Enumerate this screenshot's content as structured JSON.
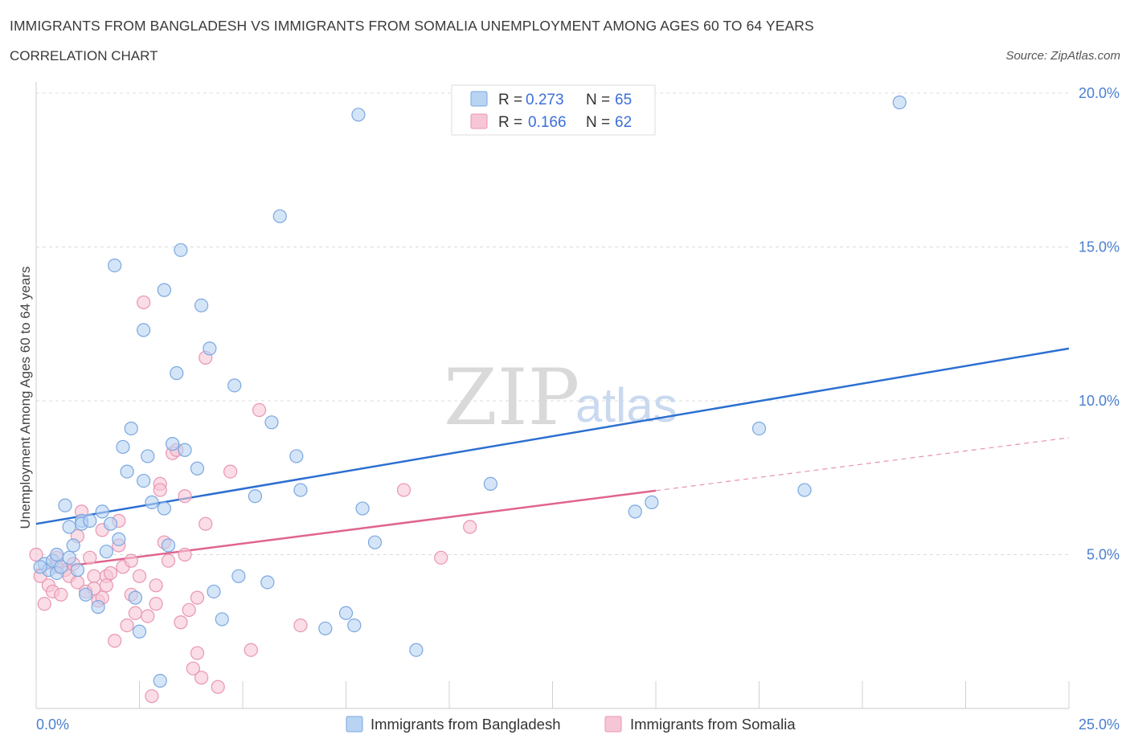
{
  "header": {
    "title": "IMMIGRANTS FROM BANGLADESH VS IMMIGRANTS FROM SOMALIA UNEMPLOYMENT AMONG AGES 60 TO 64 YEARS",
    "subtitle": "CORRELATION CHART",
    "source": "Source: ZipAtlas.com"
  },
  "watermark": {
    "zip": "ZIP",
    "atlas": "atlas"
  },
  "colors": {
    "bangladesh_fill": "#b9d3f3",
    "bangladesh_stroke": "#7aa7e0",
    "bangladesh_line": "#2c6fd1",
    "somalia_fill": "#f7c6d6",
    "somalia_stroke": "#e995b2",
    "somalia_line": "#e0648f",
    "grid": "#dcdcdc",
    "tick_label": "#4a7fd0"
  },
  "legend": {
    "rows": [
      {
        "r_label": "R =",
        "r_value": "0.273",
        "n_label": "N =",
        "n_value": "65",
        "series": "bangladesh"
      },
      {
        "r_label": "R =",
        "r_value": "0.166",
        "n_label": "N =",
        "n_value": "62",
        "series": "somalia"
      }
    ]
  },
  "bottom_legend": {
    "items": [
      {
        "label": "Immigrants from Bangladesh",
        "series": "bangladesh"
      },
      {
        "label": "Immigrants from Somalia",
        "series": "somalia"
      }
    ]
  },
  "chart_data": {
    "type": "scatter",
    "title": "IMMIGRANTS FROM BANGLADESH VS IMMIGRANTS FROM SOMALIA UNEMPLOYMENT AMONG AGES 60 TO 64 YEARS",
    "xlabel": "",
    "ylabel": "Unemployment Among Ages 60 to 64 years",
    "xlim": [
      0,
      25
    ],
    "ylim": [
      0,
      20
    ],
    "x_tick_labels": [
      "0.0%",
      "25.0%"
    ],
    "y_ticks": [
      5,
      10,
      15,
      20
    ],
    "y_tick_labels": [
      "5.0%",
      "10.0%",
      "15.0%",
      "20.0%"
    ],
    "grid": true,
    "series": [
      {
        "name": "Immigrants from Bangladesh",
        "key": "bangladesh",
        "R": 0.273,
        "N": 65,
        "trend": {
          "x0": 0,
          "y0": 6.0,
          "x1": 25,
          "y1": 11.7,
          "dashed_from": null
        },
        "points": [
          [
            0.2,
            4.7
          ],
          [
            0.3,
            4.5
          ],
          [
            0.4,
            4.8
          ],
          [
            0.5,
            4.4
          ],
          [
            0.5,
            5.0
          ],
          [
            0.6,
            4.6
          ],
          [
            0.7,
            6.6
          ],
          [
            0.8,
            4.9
          ],
          [
            0.8,
            5.9
          ],
          [
            0.9,
            5.3
          ],
          [
            1.0,
            4.5
          ],
          [
            1.1,
            6.1
          ],
          [
            1.1,
            6.0
          ],
          [
            1.2,
            3.7
          ],
          [
            1.3,
            6.1
          ],
          [
            1.5,
            3.3
          ],
          [
            1.6,
            6.4
          ],
          [
            1.7,
            5.1
          ],
          [
            1.8,
            6.0
          ],
          [
            1.9,
            14.4
          ],
          [
            2.0,
            5.5
          ],
          [
            2.1,
            8.5
          ],
          [
            2.2,
            7.7
          ],
          [
            2.3,
            9.1
          ],
          [
            2.4,
            3.6
          ],
          [
            2.5,
            2.5
          ],
          [
            2.6,
            7.4
          ],
          [
            2.6,
            12.3
          ],
          [
            2.7,
            8.2
          ],
          [
            2.8,
            6.7
          ],
          [
            3.0,
            0.9
          ],
          [
            3.1,
            13.6
          ],
          [
            3.1,
            6.5
          ],
          [
            3.2,
            5.3
          ],
          [
            3.3,
            8.6
          ],
          [
            3.4,
            10.9
          ],
          [
            3.5,
            14.9
          ],
          [
            3.6,
            8.4
          ],
          [
            3.9,
            7.8
          ],
          [
            4.0,
            13.1
          ],
          [
            4.2,
            11.7
          ],
          [
            4.3,
            3.8
          ],
          [
            4.5,
            2.9
          ],
          [
            4.9,
            4.3
          ],
          [
            5.3,
            6.9
          ],
          [
            5.6,
            4.1
          ],
          [
            5.7,
            9.3
          ],
          [
            5.9,
            16.0
          ],
          [
            6.4,
            7.1
          ],
          [
            6.3,
            8.2
          ],
          [
            7.0,
            2.6
          ],
          [
            7.5,
            3.1
          ],
          [
            7.7,
            2.7
          ],
          [
            7.8,
            19.3
          ],
          [
            7.9,
            6.5
          ],
          [
            8.2,
            5.4
          ],
          [
            9.2,
            1.9
          ],
          [
            11.0,
            7.3
          ],
          [
            14.5,
            6.4
          ],
          [
            14.9,
            6.7
          ],
          [
            17.5,
            9.1
          ],
          [
            18.6,
            7.1
          ],
          [
            20.9,
            19.7
          ],
          [
            4.8,
            10.5
          ],
          [
            0.1,
            4.6
          ]
        ]
      },
      {
        "name": "Immigrants from Somalia",
        "key": "somalia",
        "R": 0.166,
        "N": 62,
        "trend": {
          "x0": 0,
          "y0": 4.5,
          "x1": 25,
          "y1": 8.8,
          "solid_until_x": 15
        },
        "points": [
          [
            0.0,
            5.0
          ],
          [
            0.1,
            4.3
          ],
          [
            0.2,
            3.4
          ],
          [
            0.3,
            4.0
          ],
          [
            0.4,
            3.8
          ],
          [
            0.5,
            4.9
          ],
          [
            0.6,
            3.7
          ],
          [
            0.7,
            4.5
          ],
          [
            0.8,
            4.3
          ],
          [
            0.9,
            4.7
          ],
          [
            1.0,
            4.1
          ],
          [
            1.0,
            5.6
          ],
          [
            1.1,
            6.4
          ],
          [
            1.2,
            3.8
          ],
          [
            1.3,
            4.9
          ],
          [
            1.4,
            4.3
          ],
          [
            1.5,
            3.5
          ],
          [
            1.6,
            3.6
          ],
          [
            1.7,
            4.3
          ],
          [
            1.7,
            4.0
          ],
          [
            1.8,
            4.4
          ],
          [
            1.9,
            2.2
          ],
          [
            2.0,
            5.3
          ],
          [
            2.0,
            6.1
          ],
          [
            2.1,
            4.6
          ],
          [
            2.2,
            2.7
          ],
          [
            2.3,
            4.8
          ],
          [
            2.3,
            3.7
          ],
          [
            2.4,
            3.1
          ],
          [
            2.5,
            4.3
          ],
          [
            2.6,
            13.2
          ],
          [
            2.7,
            3.0
          ],
          [
            2.8,
            0.4
          ],
          [
            3.0,
            7.3
          ],
          [
            3.0,
            7.1
          ],
          [
            3.1,
            5.4
          ],
          [
            3.2,
            4.8
          ],
          [
            3.3,
            8.3
          ],
          [
            3.4,
            8.4
          ],
          [
            3.5,
            2.8
          ],
          [
            3.6,
            5.0
          ],
          [
            3.6,
            6.9
          ],
          [
            3.7,
            3.2
          ],
          [
            3.8,
            1.3
          ],
          [
            3.9,
            3.6
          ],
          [
            4.0,
            1.0
          ],
          [
            4.1,
            6.0
          ],
          [
            4.1,
            11.4
          ],
          [
            4.4,
            0.7
          ],
          [
            4.7,
            7.7
          ],
          [
            5.2,
            1.9
          ],
          [
            5.4,
            9.7
          ],
          [
            6.4,
            2.7
          ],
          [
            8.9,
            7.1
          ],
          [
            9.8,
            4.9
          ],
          [
            10.5,
            5.9
          ],
          [
            2.9,
            3.4
          ],
          [
            1.6,
            5.8
          ],
          [
            0.5,
            4.6
          ],
          [
            3.9,
            1.8
          ],
          [
            2.9,
            4.0
          ],
          [
            1.4,
            3.9
          ]
        ]
      }
    ]
  }
}
